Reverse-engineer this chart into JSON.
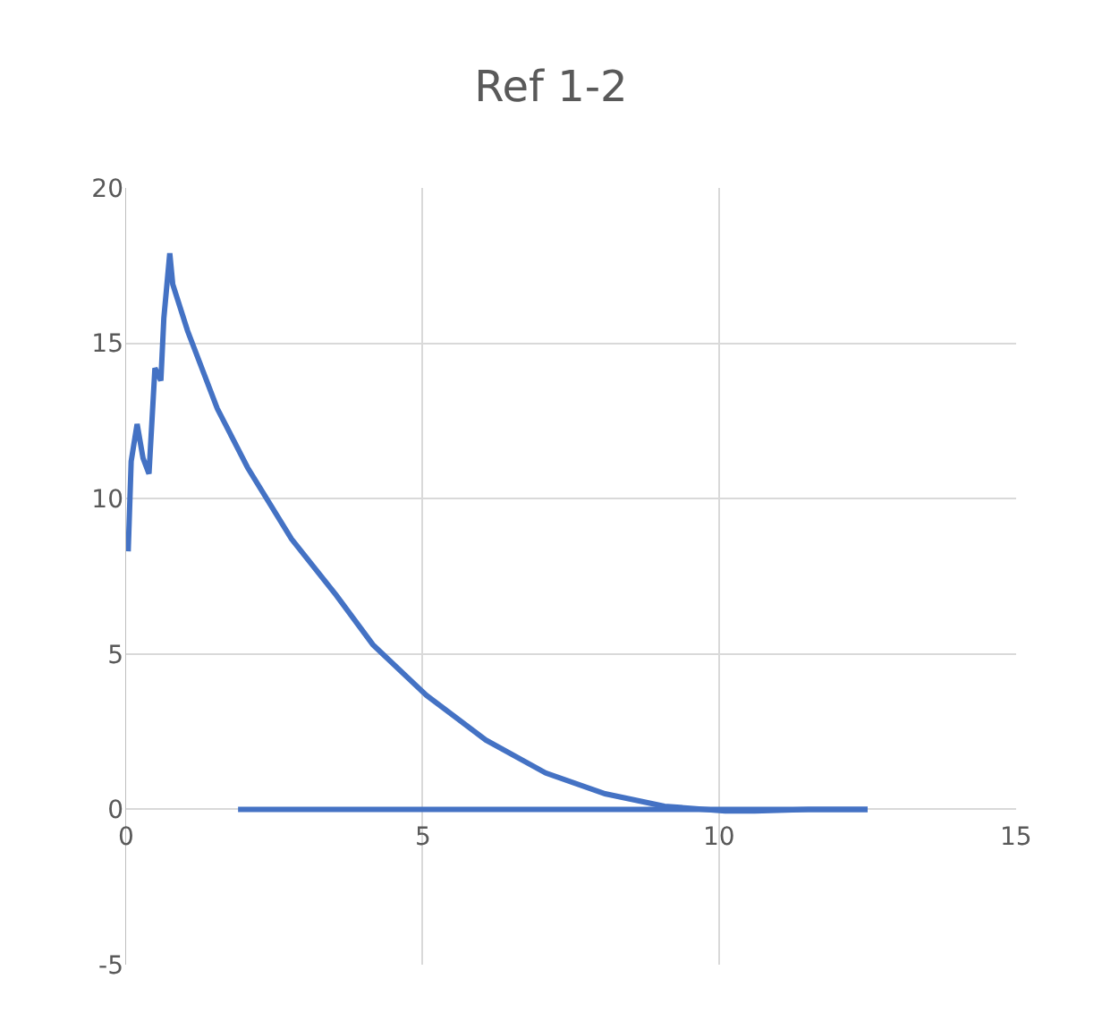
{
  "chart_data": {
    "type": "line",
    "title": "Ref 1-2",
    "series": [
      {
        "color": "#4472c4",
        "x": [
          0.05,
          0.1,
          0.2,
          0.3,
          0.4,
          0.5,
          0.6,
          0.65,
          0.75,
          0.8,
          1.05,
          1.55,
          2.06,
          2.8,
          3.55,
          4.17,
          5.07,
          6.07,
          7.08,
          8.08,
          9.08,
          10.1,
          10.6,
          11.5,
          12.5
        ],
        "values": [
          8.3,
          11.2,
          12.4,
          11.3,
          10.8,
          14.2,
          13.8,
          15.8,
          17.9,
          16.9,
          15.4,
          12.9,
          11.0,
          8.7,
          6.9,
          5.3,
          3.67,
          2.23,
          1.17,
          0.5,
          0.1,
          -0.05,
          -0.05,
          0,
          0
        ]
      },
      {
        "color": "#4472c4",
        "x": [
          1.9,
          12.5
        ],
        "values": [
          0,
          0
        ]
      }
    ],
    "xlim": [
      0,
      15
    ],
    "xticks": [
      0,
      5,
      10,
      15
    ],
    "ylim": [
      -5,
      20
    ],
    "yticks": [
      -5,
      0,
      5,
      10,
      15,
      20
    ],
    "grid": true,
    "marker": "none",
    "line_style": "solid"
  }
}
